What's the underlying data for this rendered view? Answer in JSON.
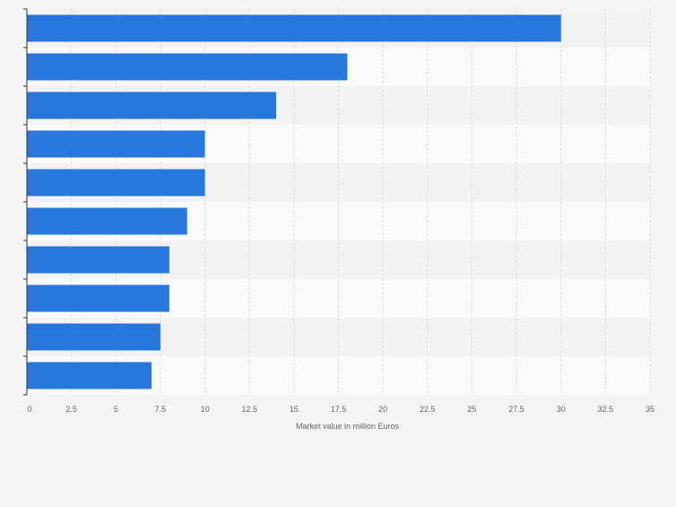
{
  "chart_data": {
    "type": "bar",
    "orientation": "horizontal",
    "categories": [
      "",
      "",
      "",
      "",
      "",
      "",
      "",
      "",
      "",
      ""
    ],
    "values": [
      30,
      18,
      14,
      10,
      10,
      9,
      8,
      8,
      7.5,
      7
    ],
    "xlabel": "Market value in million Euros",
    "ylabel": "",
    "xlim": [
      0,
      35
    ],
    "xticks": [
      0,
      2.5,
      5,
      7.5,
      10,
      12.5,
      15,
      17.5,
      20,
      22.5,
      25,
      27.5,
      30,
      32.5,
      35
    ],
    "xtick_labels": [
      "0",
      "2.5",
      "5",
      "7.5",
      "10",
      "12.5",
      "15",
      "17.5",
      "20",
      "22.5",
      "25",
      "27.5",
      "30",
      "32.5",
      "35"
    ],
    "grid": true,
    "colors": {
      "bar": "#2877dd",
      "band_light": "#fafafa",
      "band_dark": "#f2f2f2",
      "gridline": "#dcdcdc",
      "axis": "#333333",
      "tick_text": "#666666"
    }
  }
}
